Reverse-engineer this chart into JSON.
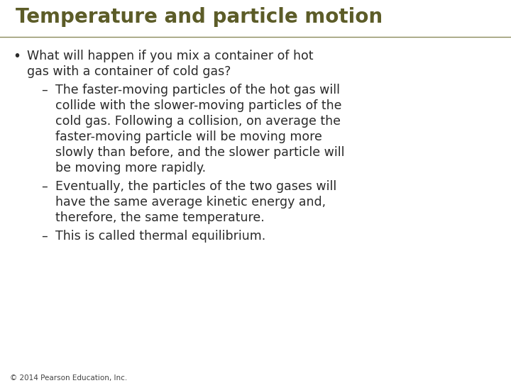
{
  "title": "Temperature and particle motion",
  "title_color": "#5c5c28",
  "title_fontsize": 20,
  "background_color": "#ffffff",
  "text_color": "#2a2a2a",
  "body_fontsize": 12.5,
  "footer": "© 2014 Pearson Education, Inc.",
  "footer_fontsize": 7.5,
  "footer_color": "#444444",
  "line_color": "#8a8a5a",
  "bullet_symbol": "•",
  "dash_symbol": "–",
  "bullet": {
    "line1": "What will happen if you mix a container of hot",
    "line2": "gas with a container of cold gas?"
  },
  "sub_bullets": [
    [
      "The faster-moving particles of the hot gas will",
      "collide with the slower-moving particles of the",
      "cold gas. Following a collision, on average the",
      "faster-moving particle will be moving more",
      "slowly than before, and the slower particle will",
      "be moving more rapidly."
    ],
    [
      "Eventually, the particles of the two gases will",
      "have the same average kinetic energy and,",
      "therefore, the same temperature."
    ],
    [
      "This is called thermal equilibrium."
    ]
  ]
}
